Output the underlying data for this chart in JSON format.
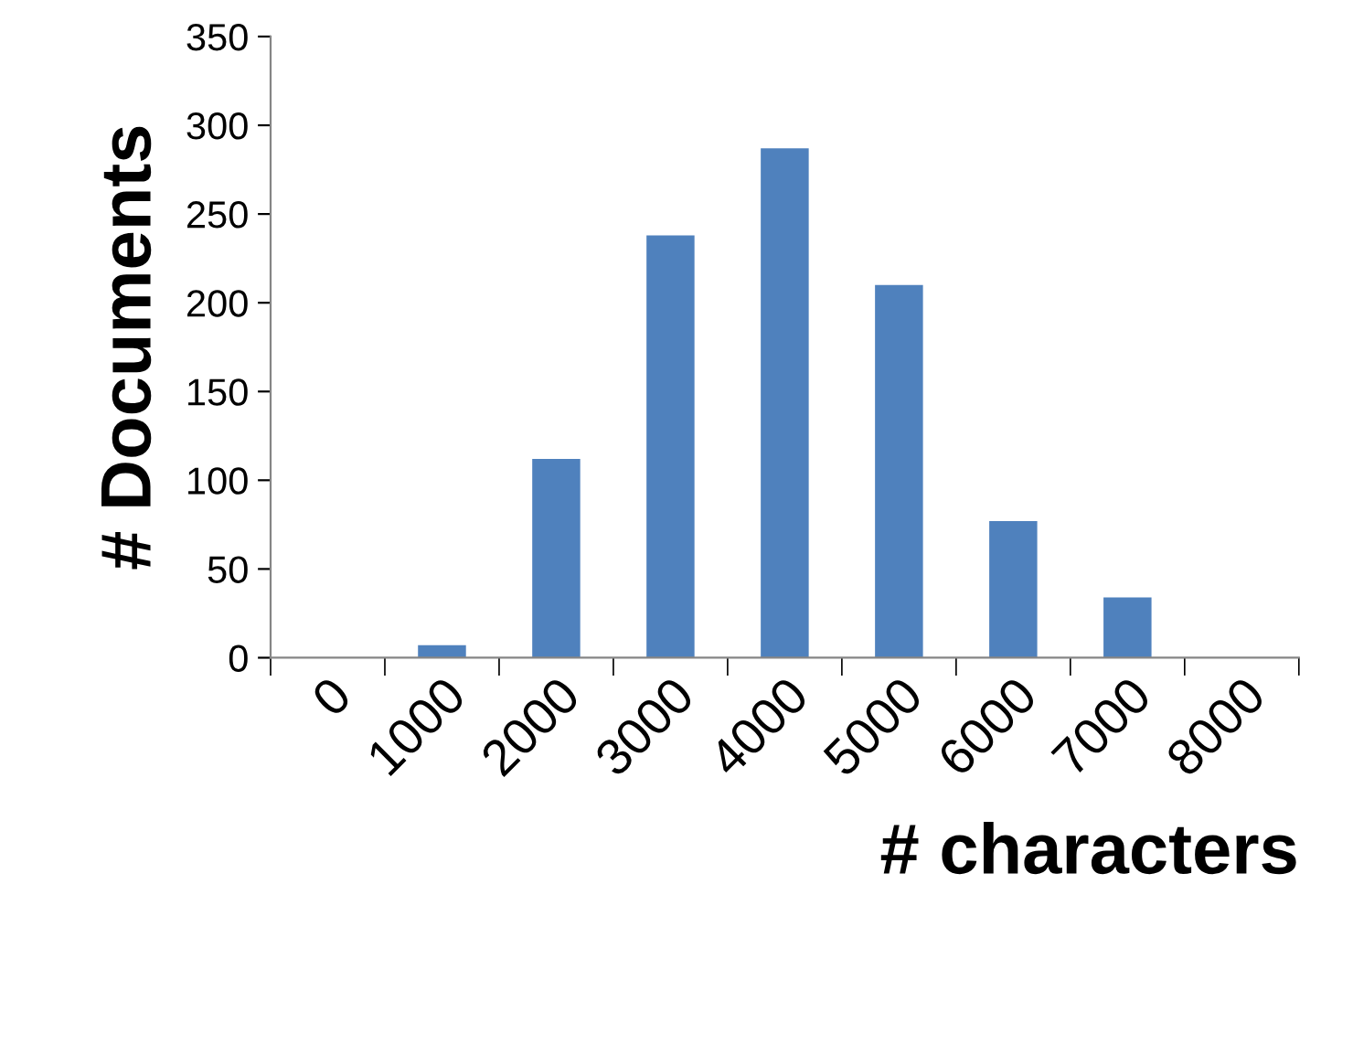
{
  "chart_data": {
    "type": "bar",
    "xlabel": "# characters",
    "ylabel": "# Documents",
    "categories": [
      "0",
      "1000",
      "2000",
      "3000",
      "4000",
      "5000",
      "6000",
      "7000",
      "8000"
    ],
    "values": [
      0,
      7,
      112,
      238,
      287,
      210,
      77,
      34,
      null
    ],
    "color": "#4f81bd",
    "ylim": [
      0,
      350
    ],
    "yticks": [
      0,
      50,
      100,
      150,
      200,
      250,
      300,
      350
    ],
    "grid": false,
    "legend": false
  }
}
